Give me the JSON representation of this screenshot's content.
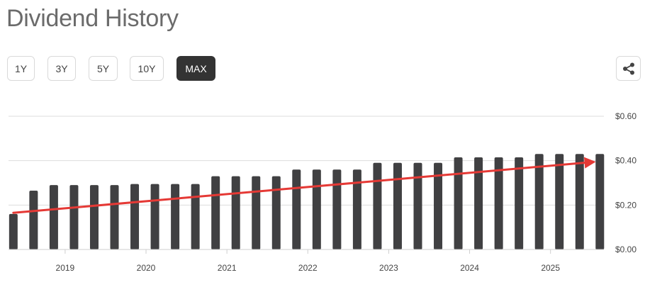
{
  "header": {
    "title": "Dividend History"
  },
  "range_tabs": [
    {
      "label": "1Y",
      "active": false
    },
    {
      "label": "3Y",
      "active": false
    },
    {
      "label": "5Y",
      "active": false
    },
    {
      "label": "10Y",
      "active": false
    },
    {
      "label": "MAX",
      "active": true
    }
  ],
  "toolbar": {
    "share_icon": "share-icon"
  },
  "colors": {
    "bar": "#404042",
    "trend": "#e53935",
    "grid": "#dddddd",
    "active_tab": "#333333"
  },
  "chart_data": {
    "type": "bar",
    "title": "",
    "xlabel": "",
    "ylabel": "",
    "ylim": [
      0,
      0.6
    ],
    "grid": true,
    "y_axis_side": "right",
    "y_ticks": [
      {
        "value": 0.6,
        "label": "$0.60"
      },
      {
        "value": 0.4,
        "label": "$0.40"
      },
      {
        "value": 0.2,
        "label": "$0.20"
      },
      {
        "value": 0.0,
        "label": "$0.00"
      }
    ],
    "x_domain": [
      2018.3,
      2025.66
    ],
    "x_ticks": [
      {
        "value": 2019,
        "label": "2019"
      },
      {
        "value": 2020,
        "label": "2020"
      },
      {
        "value": 2021,
        "label": "2021"
      },
      {
        "value": 2022,
        "label": "2022"
      },
      {
        "value": 2023,
        "label": "2023"
      },
      {
        "value": 2024,
        "label": "2024"
      },
      {
        "value": 2025,
        "label": "2025"
      }
    ],
    "series": [
      {
        "values": [
          {
            "x": 2018.36,
            "y": 0.16
          },
          {
            "x": 2018.61,
            "y": 0.265
          },
          {
            "x": 2018.86,
            "y": 0.29
          },
          {
            "x": 2019.11,
            "y": 0.29
          },
          {
            "x": 2019.36,
            "y": 0.29
          },
          {
            "x": 2019.61,
            "y": 0.29
          },
          {
            "x": 2019.86,
            "y": 0.295
          },
          {
            "x": 2020.11,
            "y": 0.295
          },
          {
            "x": 2020.36,
            "y": 0.295
          },
          {
            "x": 2020.61,
            "y": 0.295
          },
          {
            "x": 2020.86,
            "y": 0.33
          },
          {
            "x": 2021.11,
            "y": 0.33
          },
          {
            "x": 2021.36,
            "y": 0.33
          },
          {
            "x": 2021.61,
            "y": 0.33
          },
          {
            "x": 2021.86,
            "y": 0.36
          },
          {
            "x": 2022.11,
            "y": 0.36
          },
          {
            "x": 2022.36,
            "y": 0.36
          },
          {
            "x": 2022.61,
            "y": 0.36
          },
          {
            "x": 2022.86,
            "y": 0.39
          },
          {
            "x": 2023.11,
            "y": 0.39
          },
          {
            "x": 2023.36,
            "y": 0.39
          },
          {
            "x": 2023.61,
            "y": 0.39
          },
          {
            "x": 2023.86,
            "y": 0.415
          },
          {
            "x": 2024.11,
            "y": 0.415
          },
          {
            "x": 2024.36,
            "y": 0.415
          },
          {
            "x": 2024.61,
            "y": 0.415
          },
          {
            "x": 2024.86,
            "y": 0.43
          },
          {
            "x": 2025.11,
            "y": 0.43
          },
          {
            "x": 2025.36,
            "y": 0.43
          },
          {
            "x": 2025.61,
            "y": 0.43
          }
        ]
      }
    ],
    "trend_arrow": {
      "from": {
        "x": 2018.36,
        "y": 0.165
      },
      "to": {
        "x": 2025.56,
        "y": 0.395
      }
    }
  }
}
